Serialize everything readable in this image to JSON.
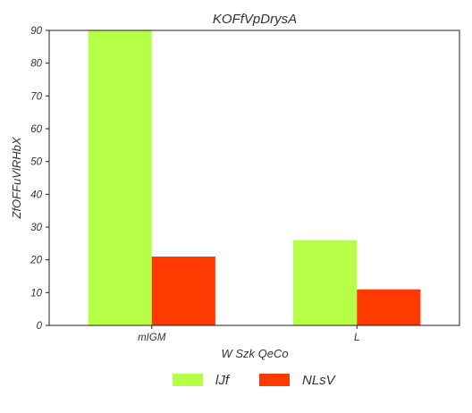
{
  "chart_data": {
    "type": "bar",
    "title": "KOFfVpDrysA",
    "xlabel": "W Szk QeCo",
    "ylabel": "ZfOFFuVlRHbX",
    "categories": [
      "mIGM",
      "L"
    ],
    "series": [
      {
        "name": "lJf",
        "values": [
          90,
          26
        ],
        "color": "#b5ff47"
      },
      {
        "name": "NLsV",
        "values": [
          21,
          11
        ],
        "color": "#ff3a00"
      }
    ],
    "ylim": [
      0,
      90
    ],
    "yticks": [
      0,
      10,
      20,
      30,
      40,
      50,
      60,
      70,
      80,
      90
    ],
    "grid": false,
    "legend": "bottom-center"
  }
}
